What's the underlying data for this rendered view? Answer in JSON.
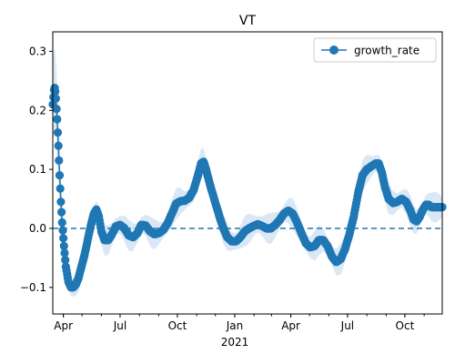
{
  "chart_data": {
    "type": "line",
    "title": "VT",
    "xlabel": "",
    "ylabel": "",
    "x_axis": {
      "kind": "date",
      "range": [
        "2020-03-15",
        "2021-11-30"
      ],
      "tick_labels": [
        {
          "date": "2020-04-01",
          "label": "Apr"
        },
        {
          "date": "2020-07-01",
          "label": "Jul"
        },
        {
          "date": "2020-10-01",
          "label": "Oct"
        },
        {
          "date": "2021-01-01",
          "label": "Jan"
        },
        {
          "date": "2021-04-01",
          "label": "Apr"
        },
        {
          "date": "2021-07-01",
          "label": "Jul"
        },
        {
          "date": "2021-10-01",
          "label": "Oct"
        }
      ],
      "year_label": {
        "date": "2021-01-01",
        "label": "2021"
      }
    },
    "y_axis": {
      "range": [
        -0.145,
        0.333
      ],
      "ticks": [
        -0.1,
        0.0,
        0.1,
        0.2,
        0.3
      ],
      "tick_labels": [
        "−0.1",
        "0.0",
        "0.1",
        "0.2",
        "0.3"
      ]
    },
    "grid": false,
    "legend": {
      "position": "top-right",
      "entries": [
        "growth_rate"
      ]
    },
    "colors": {
      "line": "#1f77b4",
      "band": "#d6e6f4",
      "zero_line": "#1f77b4"
    },
    "reference_line": {
      "y": 0.0,
      "style": "dashed"
    },
    "series": [
      {
        "name": "growth_rate",
        "marker": "circle",
        "points": [
          [
            "2020-03-15",
            0.21
          ],
          [
            "2020-03-17",
            0.235
          ],
          [
            "2020-03-18",
            0.238
          ],
          [
            "2020-03-19",
            0.232
          ],
          [
            "2020-03-20",
            0.22
          ],
          [
            "2020-03-22",
            0.185
          ],
          [
            "2020-03-24",
            0.14
          ],
          [
            "2020-03-26",
            0.09
          ],
          [
            "2020-03-28",
            0.045
          ],
          [
            "2020-03-30",
            0.01
          ],
          [
            "2020-04-02",
            -0.03
          ],
          [
            "2020-04-05",
            -0.065
          ],
          [
            "2020-04-09",
            -0.09
          ],
          [
            "2020-04-13",
            -0.1
          ],
          [
            "2020-04-17",
            -0.1
          ],
          [
            "2020-04-21",
            -0.095
          ],
          [
            "2020-04-25",
            -0.085
          ],
          [
            "2020-04-30",
            -0.065
          ],
          [
            "2020-05-05",
            -0.045
          ],
          [
            "2020-05-10",
            -0.02
          ],
          [
            "2020-05-15",
            0.005
          ],
          [
            "2020-05-20",
            0.025
          ],
          [
            "2020-05-24",
            0.032
          ],
          [
            "2020-05-28",
            0.02
          ],
          [
            "2020-06-01",
            -0.005
          ],
          [
            "2020-06-06",
            -0.02
          ],
          [
            "2020-06-12",
            -0.02
          ],
          [
            "2020-06-18",
            -0.01
          ],
          [
            "2020-06-24",
            0.003
          ],
          [
            "2020-07-01",
            0.006
          ],
          [
            "2020-07-08",
            0.0
          ],
          [
            "2020-07-15",
            -0.012
          ],
          [
            "2020-07-22",
            -0.015
          ],
          [
            "2020-07-29",
            -0.008
          ],
          [
            "2020-08-04",
            0.006
          ],
          [
            "2020-08-11",
            0.005
          ],
          [
            "2020-08-18",
            -0.005
          ],
          [
            "2020-08-25",
            -0.01
          ],
          [
            "2020-09-01",
            -0.008
          ],
          [
            "2020-09-08",
            -0.003
          ],
          [
            "2020-09-15",
            0.008
          ],
          [
            "2020-09-22",
            0.025
          ],
          [
            "2020-09-29",
            0.042
          ],
          [
            "2020-10-06",
            0.046
          ],
          [
            "2020-10-13",
            0.047
          ],
          [
            "2020-10-20",
            0.052
          ],
          [
            "2020-10-27",
            0.065
          ],
          [
            "2020-11-03",
            0.09
          ],
          [
            "2020-11-08",
            0.11
          ],
          [
            "2020-11-12",
            0.113
          ],
          [
            "2020-11-16",
            0.1
          ],
          [
            "2020-11-22",
            0.075
          ],
          [
            "2020-11-29",
            0.05
          ],
          [
            "2020-12-06",
            0.025
          ],
          [
            "2020-12-13",
            0.002
          ],
          [
            "2020-12-20",
            -0.015
          ],
          [
            "2020-12-27",
            -0.022
          ],
          [
            "2021-01-03",
            -0.022
          ],
          [
            "2021-01-10",
            -0.015
          ],
          [
            "2021-01-17",
            -0.005
          ],
          [
            "2021-01-24",
            0.0
          ],
          [
            "2021-01-31",
            0.004
          ],
          [
            "2021-02-07",
            0.007
          ],
          [
            "2021-02-14",
            0.004
          ],
          [
            "2021-02-21",
            0.0
          ],
          [
            "2021-02-28",
            0.0
          ],
          [
            "2021-03-07",
            0.006
          ],
          [
            "2021-03-14",
            0.014
          ],
          [
            "2021-03-21",
            0.025
          ],
          [
            "2021-03-28",
            0.03
          ],
          [
            "2021-04-04",
            0.025
          ],
          [
            "2021-04-11",
            0.01
          ],
          [
            "2021-04-18",
            -0.008
          ],
          [
            "2021-04-25",
            -0.025
          ],
          [
            "2021-05-02",
            -0.032
          ],
          [
            "2021-05-09",
            -0.03
          ],
          [
            "2021-05-16",
            -0.02
          ],
          [
            "2021-05-23",
            -0.02
          ],
          [
            "2021-05-30",
            -0.03
          ],
          [
            "2021-06-06",
            -0.048
          ],
          [
            "2021-06-13",
            -0.057
          ],
          [
            "2021-06-20",
            -0.052
          ],
          [
            "2021-06-27",
            -0.035
          ],
          [
            "2021-07-04",
            -0.01
          ],
          [
            "2021-07-11",
            0.02
          ],
          [
            "2021-07-18",
            0.06
          ],
          [
            "2021-07-25",
            0.09
          ],
          [
            "2021-08-01",
            0.1
          ],
          [
            "2021-08-08",
            0.105
          ],
          [
            "2021-08-15",
            0.11
          ],
          [
            "2021-08-20",
            0.11
          ],
          [
            "2021-08-25",
            0.095
          ],
          [
            "2021-08-30",
            0.07
          ],
          [
            "2021-09-05",
            0.05
          ],
          [
            "2021-09-12",
            0.043
          ],
          [
            "2021-09-19",
            0.045
          ],
          [
            "2021-09-26",
            0.05
          ],
          [
            "2021-10-03",
            0.045
          ],
          [
            "2021-10-10",
            0.03
          ],
          [
            "2021-10-15",
            0.015
          ],
          [
            "2021-10-20",
            0.012
          ],
          [
            "2021-10-25",
            0.02
          ],
          [
            "2021-10-30",
            0.032
          ],
          [
            "2021-11-04",
            0.04
          ],
          [
            "2021-11-08",
            0.04
          ],
          [
            "2021-11-13",
            0.036
          ],
          [
            "2021-11-20",
            0.036
          ],
          [
            "2021-11-30",
            0.036
          ]
        ]
      }
    ]
  }
}
